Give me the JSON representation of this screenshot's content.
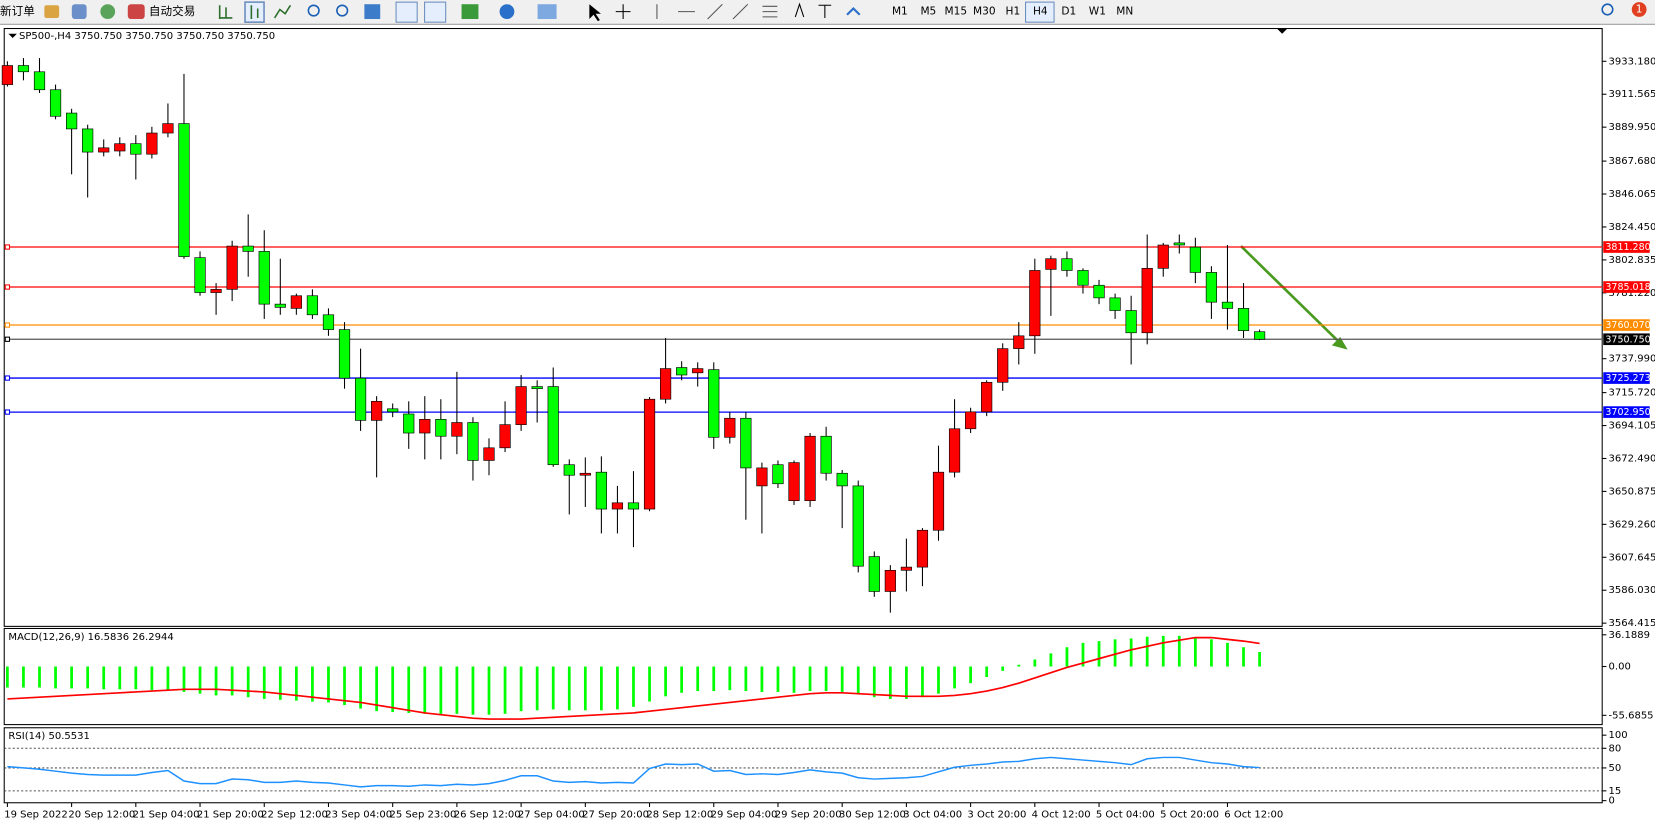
{
  "toolbar": {
    "new_order": "新订单",
    "auto_trading": "自动交易",
    "timeframes": [
      "M1",
      "M5",
      "M15",
      "M30",
      "H1",
      "H4",
      "D1",
      "W1",
      "MN"
    ],
    "active_timeframe": "H4",
    "notifications": 1
  },
  "chart_data": [
    {
      "type": "candlestick",
      "title": "SP500-,H4 3750.750 3750.750 3750.750 3750.750",
      "categories": [
        "19 Sep 2022",
        null,
        null,
        null,
        "20 Sep 12:00",
        null,
        null,
        null,
        "21 Sep 04:00",
        null,
        null,
        null,
        "21 Sep 20:00",
        null,
        null,
        null,
        "22 Sep 12:00",
        null,
        null,
        null,
        "23 Sep 04:00",
        null,
        null,
        null,
        "25 Sep 23:00",
        null,
        null,
        null,
        "26 Sep 12:00",
        null,
        null,
        null,
        "27 Sep 04:00",
        null,
        null,
        null,
        "27 Sep 20:00",
        null,
        null,
        null,
        "28 Sep 12:00",
        null,
        null,
        null,
        "29 Sep 04:00",
        null,
        null,
        null,
        "29 Sep 20:00",
        null,
        null,
        null,
        "30 Sep 12:00",
        null,
        null,
        null,
        "3 Oct 04:00",
        null,
        null,
        null,
        "3 Oct 20:00",
        null,
        null,
        null,
        "4 Oct 12:00",
        null,
        null,
        null,
        "5 Oct 04:00",
        null,
        null,
        null,
        "5 Oct 20:00",
        null,
        null,
        null,
        "6 Oct 12:00",
        null,
        null
      ],
      "open": [
        3917.9,
        3930.4,
        3926.3,
        3914.5,
        3899.2,
        3888.8,
        3873.6,
        3874.3,
        3879.1,
        3872.2,
        3886.1,
        3892.3,
        3804.3,
        3781.4,
        3783.5,
        3811.9,
        3808.4,
        3773.8,
        3771.0,
        3779.3,
        3766.8,
        3757.1,
        3725.2,
        3697.5,
        3705.1,
        3701.7,
        3689.2,
        3698.2,
        3687.1,
        3696.1,
        3671.2,
        3679.5,
        3694.7,
        3719.7,
        3719.7,
        3668.4,
        3661.5,
        3663.5,
        3639.3,
        3643.4,
        3639.3,
        3711.4,
        3732.2,
        3728.7,
        3730.8,
        3686.4,
        3698.9,
        3654.5,
        3668.4,
        3644.8,
        3644.8,
        3687.1,
        3662.8,
        3654.5,
        3608.1,
        3585.2,
        3599.1,
        3601.2,
        3625.4,
        3663.5,
        3692.0,
        3703.1,
        3722.5,
        3744.6,
        3753.0,
        3796.6,
        3803.6,
        3795.9,
        3786.2,
        3777.9,
        3769.6,
        3755.0,
        3797.3,
        3814.0,
        3811.2,
        3794.6,
        3775.1,
        3771.0,
        3755.7
      ],
      "high": [
        3933.2,
        3935.3,
        3935.3,
        3917.9,
        3902.0,
        3891.6,
        3881.9,
        3883.3,
        3884.7,
        3890.2,
        3905.5,
        3924.9,
        3808.4,
        3787.6,
        3815.4,
        3832.7,
        3822.3,
        3803.6,
        3780.7,
        3783.5,
        3771.0,
        3762.0,
        3744.6,
        3713.4,
        3708.6,
        3710.0,
        3713.4,
        3711.4,
        3729.4,
        3699.6,
        3685.7,
        3710.0,
        3727.3,
        3723.8,
        3732.2,
        3671.9,
        3673.2,
        3673.9,
        3654.5,
        3664.2,
        3712.8,
        3751.6,
        3736.3,
        3735.6,
        3735.6,
        3703.1,
        3703.1,
        3669.8,
        3671.2,
        3671.2,
        3689.2,
        3693.3,
        3664.9,
        3658.0,
        3611.5,
        3602.5,
        3619.9,
        3626.8,
        3680.9,
        3711.4,
        3705.8,
        3723.8,
        3748.1,
        3762.0,
        3803.6,
        3805.6,
        3808.4,
        3797.3,
        3789.7,
        3780.7,
        3779.3,
        3819.5,
        3814.0,
        3819.5,
        3817.4,
        3798.7,
        3812.6,
        3787.6,
        3757.1
      ],
      "low": [
        3916.6,
        3920.7,
        3912.4,
        3895.1,
        3859.0,
        3843.8,
        3870.8,
        3870.8,
        3855.6,
        3869.4,
        3883.3,
        3803.6,
        3779.3,
        3766.8,
        3775.8,
        3791.8,
        3764.1,
        3766.8,
        3766.8,
        3764.1,
        3753.0,
        3718.3,
        3690.6,
        3660.1,
        3699.6,
        3678.8,
        3671.9,
        3671.9,
        3675.3,
        3658.0,
        3661.5,
        3676.7,
        3690.6,
        3696.1,
        3667.0,
        3635.8,
        3640.7,
        3623.3,
        3623.3,
        3614.3,
        3637.9,
        3708.6,
        3723.8,
        3719.7,
        3678.8,
        3682.3,
        3632.3,
        3623.3,
        3653.1,
        3642.0,
        3640.7,
        3658.0,
        3626.8,
        3597.7,
        3581.7,
        3571.3,
        3585.2,
        3588.7,
        3618.5,
        3660.1,
        3689.2,
        3700.3,
        3716.9,
        3734.2,
        3741.2,
        3766.1,
        3791.8,
        3780.7,
        3773.8,
        3764.1,
        3734.2,
        3747.4,
        3791.8,
        3807.0,
        3787.6,
        3764.1,
        3757.1,
        3751.6,
        3750.2
      ],
      "close": [
        3930.4,
        3926.3,
        3914.5,
        3897.1,
        3888.8,
        3873.6,
        3876.4,
        3879.1,
        3872.2,
        3886.1,
        3892.3,
        3805.0,
        3781.4,
        3783.5,
        3811.9,
        3808.4,
        3773.8,
        3771.7,
        3779.3,
        3766.8,
        3757.1,
        3725.2,
        3697.5,
        3710.0,
        3703.1,
        3689.2,
        3698.2,
        3687.1,
        3696.1,
        3671.2,
        3679.5,
        3694.7,
        3719.7,
        3718.3,
        3668.4,
        3661.5,
        3662.8,
        3639.3,
        3643.4,
        3639.3,
        3711.4,
        3731.5,
        3727.3,
        3731.5,
        3686.4,
        3698.9,
        3666.3,
        3666.3,
        3655.9,
        3669.8,
        3687.1,
        3662.8,
        3654.5,
        3601.8,
        3585.2,
        3599.1,
        3601.2,
        3625.4,
        3663.5,
        3692.0,
        3703.1,
        3722.5,
        3744.6,
        3753.0,
        3795.9,
        3803.6,
        3795.9,
        3786.2,
        3777.9,
        3769.6,
        3755.0,
        3797.3,
        3812.6,
        3812.6,
        3794.6,
        3775.1,
        3771.0,
        3756.4,
        3750.75
      ],
      "up_color": "#ff0000",
      "down_color": "#00ff00",
      "ylim": [
        3563.0,
        3954.0
      ],
      "yticks": [
        {
          "value": 3933.18,
          "label": "3933.180"
        },
        {
          "value": 3911.565,
          "label": "3911.565"
        },
        {
          "value": 3889.95,
          "label": "3889.950"
        },
        {
          "value": 3867.68,
          "label": "3867.680"
        },
        {
          "value": 3846.065,
          "label": "3846.065"
        },
        {
          "value": 3824.45,
          "label": "3824.450"
        },
        {
          "value": 3802.835,
          "label": "3802.835"
        },
        {
          "value": 3781.22,
          "label": "3781.220"
        },
        {
          "value": 3737.99,
          "label": "3737.990"
        },
        {
          "value": 3715.72,
          "label": "3715.720"
        },
        {
          "value": 3694.105,
          "label": "3694.105"
        },
        {
          "value": 3672.49,
          "label": "3672.490"
        },
        {
          "value": 3650.875,
          "label": "3650.875"
        },
        {
          "value": 3629.26,
          "label": "3629.260"
        },
        {
          "value": 3607.645,
          "label": "3607.645"
        },
        {
          "value": 3586.03,
          "label": "3586.030"
        },
        {
          "value": 3564.415,
          "label": "3564.415"
        }
      ],
      "hlines": [
        {
          "value": 3811.28,
          "label": "3811.280",
          "color": "#ff0000"
        },
        {
          "value": 3785.018,
          "label": "3785.018",
          "color": "#ff0000"
        },
        {
          "value": 3760.07,
          "label": "3760.070",
          "color": "#ff8c00"
        },
        {
          "value": 3750.75,
          "label": "3750.750",
          "color": "#000000"
        },
        {
          "value": 3725.273,
          "label": "3725.273",
          "color": "#0000ff"
        },
        {
          "value": 3702.95,
          "label": "3702.950",
          "color": "#0000ff"
        }
      ]
    },
    {
      "type": "macd",
      "title": "MACD(12,26,9) 16.5836 26.2944",
      "histogram": {
        "color": "#00ff00",
        "values": [
          -24,
          -24,
          -24,
          -25,
          -25,
          -25,
          -26,
          -26,
          -26,
          -27,
          -27,
          -29,
          -31,
          -33,
          -33,
          -35,
          -37,
          -38,
          -39,
          -40,
          -41,
          -44,
          -48,
          -51,
          -52,
          -53,
          -54,
          -54,
          -54,
          -55,
          -55,
          -54,
          -51,
          -50,
          -49,
          -50,
          -50,
          -50,
          -49,
          -46,
          -40,
          -34,
          -30,
          -28,
          -28,
          -27,
          -28,
          -29,
          -29,
          -30,
          -28,
          -28,
          -29,
          -32,
          -35,
          -37,
          -37,
          -35,
          -31,
          -25,
          -19,
          -12,
          -5,
          2,
          8,
          15,
          22,
          27,
          29,
          31,
          32,
          34,
          35,
          35,
          33,
          31,
          27,
          22,
          16.5836
        ]
      },
      "signal": {
        "color": "#ff0000",
        "values": [
          -37,
          -36,
          -35,
          -34,
          -33,
          -32,
          -31,
          -30,
          -29,
          -28,
          -27,
          -26,
          -26,
          -26,
          -27,
          -28,
          -29,
          -31,
          -33,
          -35,
          -37,
          -39,
          -41,
          -44,
          -47,
          -50,
          -53,
          -55,
          -57,
          -59,
          -60,
          -60,
          -60,
          -59,
          -58,
          -57,
          -56,
          -55,
          -54,
          -53,
          -51,
          -49,
          -47,
          -45,
          -43,
          -41,
          -39,
          -37,
          -35,
          -33,
          -31,
          -30,
          -30,
          -31,
          -32,
          -33,
          -34,
          -34,
          -34,
          -33,
          -31,
          -28,
          -24,
          -19,
          -13,
          -7,
          -1,
          4,
          9,
          14,
          19,
          23,
          27,
          30,
          33,
          33,
          31,
          29,
          26.2944
        ]
      },
      "ylim": [
        -66.3,
        42.2
      ],
      "yticks": [
        36.1889,
        {
          "value": 0,
          "label": "0.00"
        },
        -55.6855
      ]
    },
    {
      "type": "line",
      "title": "RSI(14) 50.5531",
      "color": "#1e90ff",
      "values": [
        52,
        50,
        48,
        45,
        42,
        40,
        39,
        39,
        39,
        43,
        46,
        30,
        26,
        26,
        33,
        32,
        28,
        28,
        30,
        28,
        27,
        24,
        21,
        23,
        23,
        22,
        24,
        23,
        25,
        24,
        26,
        31,
        38,
        38,
        30,
        28,
        29,
        27,
        28,
        27,
        49,
        56,
        55,
        56,
        45,
        46,
        40,
        41,
        40,
        43,
        47,
        44,
        42,
        35,
        33,
        34,
        35,
        37,
        44,
        51,
        54,
        56,
        59,
        60,
        64,
        66,
        64,
        62,
        60,
        58,
        55,
        64,
        66,
        66,
        62,
        58,
        56,
        52,
        50.5531
      ],
      "ylim": [
        -3.2,
        109.7
      ],
      "yticks": [
        100,
        80,
        50,
        15,
        0
      ],
      "levels": [
        80,
        50,
        15
      ]
    }
  ]
}
